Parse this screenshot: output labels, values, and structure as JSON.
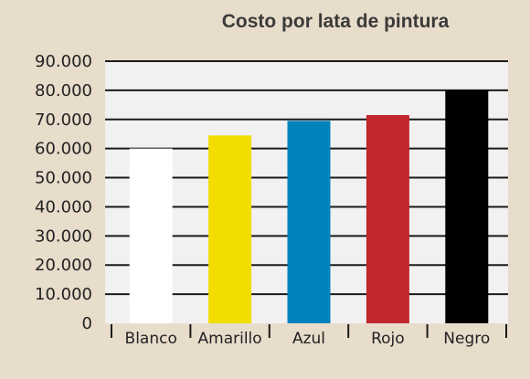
{
  "chart_data": {
    "type": "bar",
    "title": "Costo por lata de pintura",
    "xlabel": "",
    "ylabel": "",
    "categories": [
      "Blanco",
      "Amarillo",
      "Azul",
      "Rojo",
      "Negro"
    ],
    "values": [
      60000,
      64500,
      69500,
      71500,
      80000
    ],
    "bar_colors": [
      "#ffffff",
      "#f2dd00",
      "#0082bc",
      "#c1272d",
      "#000000"
    ],
    "ylim": [
      0,
      90000
    ],
    "yticks": [
      0,
      10000,
      20000,
      30000,
      40000,
      50000,
      60000,
      70000,
      80000,
      90000
    ],
    "ytick_labels": [
      "0",
      "10.000",
      "20.000",
      "30.000",
      "40.000",
      "50.000",
      "60.000",
      "70.000",
      "80.000",
      "90.000"
    ],
    "grid": true,
    "legend": "none",
    "colors": {
      "page_background": "#e8dccb",
      "plot_background": "#f1f1f1",
      "grid": "#1a1a1a",
      "text": "#222222",
      "title": "#3a3a3a"
    }
  }
}
